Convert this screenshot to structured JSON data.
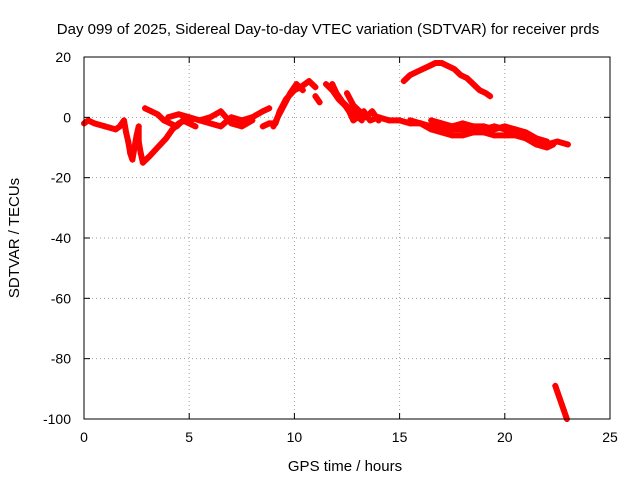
{
  "chart_data": {
    "type": "scatter",
    "title": "Day 099 of 2025, Sidereal Day-to-day VTEC variation (SDTVAR) for receiver prds",
    "xlabel": "GPS time / hours",
    "ylabel": "SDTVAR / TECUs",
    "xlim": [
      0,
      25
    ],
    "ylim": [
      -100,
      20
    ],
    "xticks": [
      "0",
      "5",
      "10",
      "15",
      "20",
      "25"
    ],
    "yticks": [
      "20",
      "0",
      "-20",
      "-40",
      "-60",
      "-80",
      "-100"
    ],
    "grid": true,
    "marker": "+",
    "series": [
      {
        "name": "prds",
        "color": "#ff0000",
        "segments": [
          [
            [
              0.0,
              -2
            ],
            [
              0.2,
              -1
            ],
            [
              0.5,
              -2
            ],
            [
              1.0,
              -3
            ],
            [
              1.5,
              -4
            ],
            [
              1.7,
              -3
            ],
            [
              1.9,
              -1
            ],
            [
              2.0,
              -5
            ],
            [
              2.1,
              -8
            ],
            [
              2.2,
              -12
            ],
            [
              2.3,
              -14
            ],
            [
              2.4,
              -10
            ],
            [
              2.5,
              -6
            ],
            [
              2.6,
              -3
            ],
            [
              2.6,
              -8
            ],
            [
              2.7,
              -12
            ],
            [
              2.8,
              -15
            ]
          ],
          [
            [
              2.8,
              -15
            ],
            [
              3.1,
              -13
            ],
            [
              3.5,
              -10
            ],
            [
              3.9,
              -7
            ],
            [
              4.2,
              -4
            ],
            [
              4.5,
              -2
            ],
            [
              4.8,
              -1
            ],
            [
              5.1,
              -1
            ]
          ],
          [
            [
              2.9,
              3
            ],
            [
              3.2,
              2
            ],
            [
              3.5,
              1
            ],
            [
              3.8,
              -1
            ],
            [
              4.1,
              -2
            ],
            [
              4.4,
              -3
            ],
            [
              4.7,
              -1
            ],
            [
              5.0,
              -2
            ],
            [
              5.3,
              -3
            ]
          ],
          [
            [
              4.0,
              0
            ],
            [
              4.5,
              1
            ],
            [
              5.0,
              0
            ],
            [
              5.5,
              -1
            ],
            [
              6.0,
              -2
            ],
            [
              6.5,
              -3
            ],
            [
              7.0,
              0
            ],
            [
              7.5,
              -1
            ],
            [
              8.0,
              0
            ],
            [
              8.5,
              2
            ],
            [
              8.8,
              3
            ]
          ],
          [
            [
              5.5,
              -1
            ],
            [
              6.0,
              0
            ],
            [
              6.5,
              2
            ],
            [
              7.0,
              -2
            ],
            [
              7.5,
              -3
            ],
            [
              8.0,
              -1
            ]
          ],
          [
            [
              8.5,
              -3
            ],
            [
              8.8,
              -2
            ],
            [
              9.1,
              -2
            ],
            [
              9.3,
              2
            ],
            [
              9.6,
              6
            ],
            [
              10.0,
              9
            ],
            [
              10.3,
              10
            ],
            [
              10.5,
              11
            ],
            [
              10.7,
              12
            ],
            [
              11.0,
              10
            ]
          ],
          [
            [
              9.0,
              -3
            ],
            [
              9.2,
              0
            ],
            [
              9.5,
              4
            ],
            [
              9.8,
              8
            ],
            [
              10.1,
              11
            ],
            [
              10.4,
              9
            ]
          ],
          [
            [
              11.0,
              7
            ],
            [
              11.2,
              5
            ]
          ],
          [
            [
              11.5,
              11
            ],
            [
              11.8,
              9
            ],
            [
              12.1,
              6
            ],
            [
              12.4,
              4
            ],
            [
              12.6,
              2
            ],
            [
              12.8,
              -1
            ],
            [
              13.0,
              0
            ],
            [
              13.3,
              2
            ],
            [
              13.6,
              -1
            ],
            [
              14.0,
              0
            ]
          ],
          [
            [
              11.8,
              11
            ],
            [
              12.0,
              8
            ],
            [
              12.3,
              5
            ],
            [
              12.6,
              3
            ],
            [
              12.9,
              1
            ],
            [
              13.2,
              -1
            ]
          ],
          [
            [
              12.5,
              8
            ],
            [
              12.8,
              4
            ],
            [
              13.1,
              2
            ],
            [
              13.4,
              0
            ],
            [
              13.7,
              2
            ],
            [
              14.0,
              -1
            ]
          ],
          [
            [
              14.0,
              0
            ],
            [
              14.5,
              -1
            ],
            [
              15.0,
              -1
            ],
            [
              15.5,
              -2
            ],
            [
              16.0,
              -2
            ],
            [
              16.5,
              -3
            ],
            [
              17.0,
              -3
            ],
            [
              17.5,
              -4
            ],
            [
              18.0,
              -4
            ],
            [
              18.5,
              -5
            ],
            [
              19.0,
              -4
            ],
            [
              19.5,
              -3
            ],
            [
              20.0,
              -4
            ],
            [
              20.5,
              -5
            ],
            [
              21.0,
              -6
            ],
            [
              21.5,
              -8
            ],
            [
              22.0,
              -9
            ],
            [
              22.5,
              -8
            ],
            [
              23.0,
              -9
            ]
          ],
          [
            [
              15.5,
              -1
            ],
            [
              16.0,
              -2
            ],
            [
              16.5,
              -4
            ],
            [
              17.0,
              -5
            ],
            [
              17.5,
              -6
            ],
            [
              18.0,
              -6
            ],
            [
              18.5,
              -5
            ],
            [
              19.0,
              -5
            ],
            [
              19.5,
              -6
            ],
            [
              20.0,
              -6
            ],
            [
              20.5,
              -6
            ],
            [
              21.0,
              -7
            ],
            [
              21.5,
              -9
            ],
            [
              22.0,
              -10
            ],
            [
              22.3,
              -9
            ]
          ],
          [
            [
              16.5,
              -1
            ],
            [
              17.0,
              -2
            ],
            [
              17.5,
              -3
            ],
            [
              18.0,
              -2
            ],
            [
              18.5,
              -3
            ],
            [
              19.0,
              -3
            ],
            [
              19.5,
              -4
            ],
            [
              20.0,
              -3
            ],
            [
              20.5,
              -4
            ],
            [
              21.0,
              -5
            ],
            [
              21.5,
              -7
            ],
            [
              22.0,
              -8
            ]
          ],
          [
            [
              15.2,
              12
            ],
            [
              15.5,
              14
            ],
            [
              15.8,
              15
            ],
            [
              16.1,
              16
            ],
            [
              16.4,
              17
            ],
            [
              16.7,
              18
            ],
            [
              17.0,
              18
            ],
            [
              17.3,
              17
            ],
            [
              17.6,
              16
            ],
            [
              17.9,
              14
            ],
            [
              18.2,
              13
            ],
            [
              18.5,
              11
            ],
            [
              18.8,
              9
            ],
            [
              19.1,
              8
            ],
            [
              19.3,
              7
            ]
          ],
          [
            [
              22.4,
              -89
            ],
            [
              22.5,
              -91
            ],
            [
              22.6,
              -93
            ],
            [
              22.7,
              -95
            ],
            [
              22.8,
              -97
            ],
            [
              22.9,
              -99
            ],
            [
              22.95,
              -100
            ]
          ]
        ]
      }
    ]
  }
}
